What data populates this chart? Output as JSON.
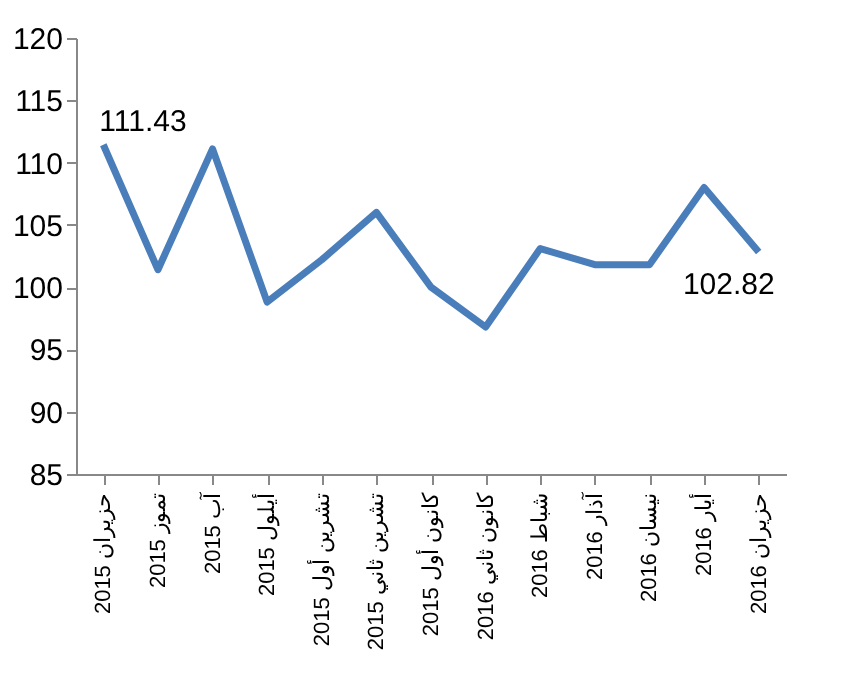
{
  "chart_data": {
    "type": "line",
    "categories": [
      "حزيران 2015",
      "تموز 2015",
      "آب 2015",
      "أيلول 2015",
      "تشرين أول 2015",
      "تشرين ثاني 2015",
      "كانون أول 2015",
      "كانون ثاني 2016",
      "شباط 2016",
      "آذار 2016",
      "نيسان 2016",
      "أيار 2016",
      "حزيران 2016"
    ],
    "series": [
      {
        "color": "#4a7ebb",
        "values": [
          111.43,
          101.4,
          111.1,
          98.8,
          102.2,
          106.0,
          100.0,
          96.8,
          103.1,
          101.8,
          101.8,
          108.0,
          102.82
        ],
        "value_labels": [
          "111.43",
          null,
          null,
          null,
          null,
          null,
          null,
          null,
          null,
          null,
          null,
          null,
          "102.82"
        ]
      }
    ],
    "ylim": [
      85,
      120
    ],
    "yticks": [
      85,
      90,
      95,
      100,
      105,
      110,
      115,
      120
    ],
    "grid": false,
    "marker": "none",
    "line_style": "solid"
  }
}
